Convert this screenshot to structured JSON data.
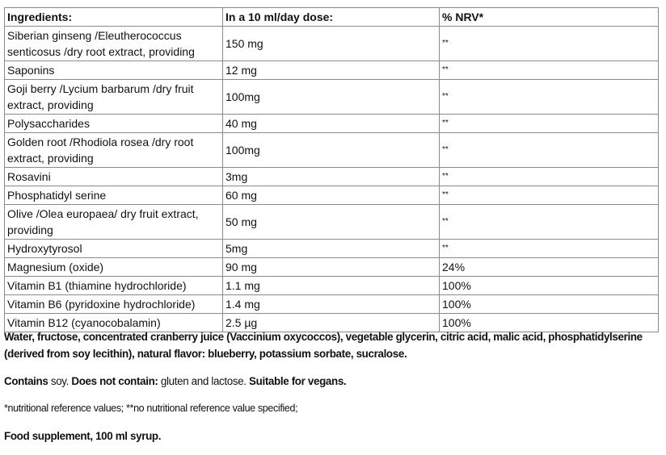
{
  "table": {
    "headers": [
      "Ingredients:",
      "In a 10 ml/day dose:",
      "% NRV*"
    ],
    "rows": [
      [
        "Siberian ginseng /Eleutherococcus senticosus /dry root extract, providing",
        "150 mg",
        "**"
      ],
      [
        "Saponins",
        "12 mg",
        "**"
      ],
      [
        "Goji berry /Lycium barbarum /dry fruit extract, providing",
        "100mg",
        "**"
      ],
      [
        "Polysaccharides",
        "40 mg",
        "**"
      ],
      [
        "Golden root /Rhodiola rosea /dry root extract, providing",
        "100mg",
        "**"
      ],
      [
        "Rosavini",
        "3mg",
        "**"
      ],
      [
        "Phosphatidyl serine",
        "60 mg",
        "**"
      ],
      [
        "Olive /Olea europaea/ dry fruit extract, providing",
        "50 mg",
        "**"
      ],
      [
        "Hydroxytyrosol",
        "5mg",
        "**"
      ],
      [
        "Magnesium (oxide)",
        "90 mg",
        "24%"
      ],
      [
        "Vitamin B1 (thiamine hydrochloride)",
        "1.1 mg",
        "100%"
      ],
      [
        "Vitamin B6 (pyridoxine hydrochloride)",
        "1.4 mg",
        "100%"
      ],
      [
        "Vitamin B12 (cyanocobalamin)",
        "2.5 µg",
        "100%"
      ]
    ]
  },
  "notes": {
    "ingredients": "Water, fructose, concentrated cranberry juice (Vaccinium oxycoccos), vegetable glycerin, citric acid, malic acid, phosphatidylserine (derived from soy lecithin), natural flavor: blueberry, potassium sorbate, sucralose.",
    "contains_label": "Contains",
    "contains_value": " soy. ",
    "not_contain_label": "Does not contain:",
    "not_contain_value": " gluten and lactose. ",
    "vegan": "Suitable for vegans.",
    "footnote": "*nutritional reference values; **no nutritional reference value specified;",
    "product": "Food supplement, 100 ml syrup."
  }
}
